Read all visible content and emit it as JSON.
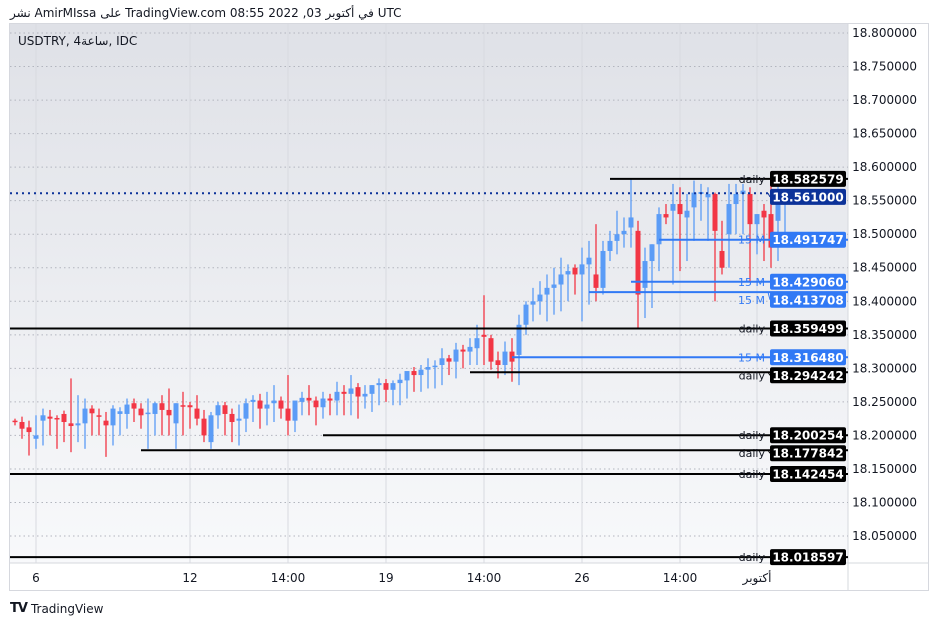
{
  "header": {
    "text": "نشر AmirMIssa على TradingView.com 08:55 2022 ,03 في أكتوبر UTC"
  },
  "symbol_label": "USDTRY, 4ساعة, IDC",
  "footer": {
    "brand": "TradingView"
  },
  "colors": {
    "up": "#5b9cf6",
    "down": "#f23645",
    "current": "#0c3299",
    "blue_level": "#3179f5",
    "black_level": "#000000"
  },
  "chart_data": {
    "type": "candlestick",
    "ylim": [
      18.0,
      18.8
    ],
    "y_ticks": [
      "18.800000",
      "18.750000",
      "18.700000",
      "18.650000",
      "18.600000",
      "18.550000",
      "18.500000",
      "18.450000",
      "18.400000",
      "18.350000",
      "18.300000",
      "18.250000",
      "18.200000",
      "18.150000",
      "18.100000",
      "18.050000"
    ],
    "x_ticks": [
      {
        "label": "6",
        "candle": 3
      },
      {
        "label": "12",
        "candle": 25
      },
      {
        "label": "14:00",
        "candle": 39
      },
      {
        "label": "19",
        "candle": 53
      },
      {
        "label": "14:00",
        "candle": 67
      },
      {
        "label": "26",
        "candle": 81
      },
      {
        "label": "14:00",
        "candle": 95
      },
      {
        "label": "أكتوبر",
        "candle": 106
      }
    ],
    "grid": true,
    "current_price": {
      "value": 18.561,
      "label": "18.561000"
    },
    "levels": [
      {
        "value": 18.582579,
        "label": "18.582579",
        "tag": "daily",
        "color": "black",
        "from_candle": 85
      },
      {
        "value": 18.491747,
        "label": "18.491747",
        "tag": "15 M",
        "color": "blue",
        "from_candle": 92
      },
      {
        "value": 18.42906,
        "label": "18.429060",
        "tag": "15 M",
        "color": "blue",
        "from_candle": 88
      },
      {
        "value": 18.413708,
        "label": "18.413708",
        "tag": "15 M",
        "color": "blue",
        "from_candle": 82
      },
      {
        "value": 18.359499,
        "label": "18.359499",
        "tag": "daily",
        "color": "black",
        "from_candle": 0
      },
      {
        "value": 18.31648,
        "label": "18.316480",
        "tag": "15 M",
        "color": "blue",
        "from_candle": 71
      },
      {
        "value": 18.294242,
        "label": "18.294242",
        "tag": "daily",
        "color": "black",
        "from_candle": 65
      },
      {
        "value": 18.200254,
        "label": "18.200254",
        "tag": "daily",
        "color": "black",
        "from_candle": 44
      },
      {
        "value": 18.177842,
        "label": "18.177842",
        "tag": "daily",
        "color": "black",
        "from_candle": 18
      },
      {
        "value": 18.142454,
        "label": "18.142454",
        "tag": "daily",
        "color": "black",
        "from_candle": 0
      },
      {
        "value": 18.018597,
        "label": "18.018597",
        "tag": "daily",
        "color": "black",
        "from_candle": 0
      }
    ],
    "ohlc": [
      [
        18.222,
        18.225,
        18.215,
        18.22
      ],
      [
        18.22,
        18.228,
        18.195,
        18.21
      ],
      [
        18.212,
        18.222,
        18.17,
        18.205
      ],
      [
        18.195,
        18.23,
        18.18,
        18.2
      ],
      [
        18.222,
        18.24,
        18.185,
        18.23
      ],
      [
        18.228,
        18.238,
        18.2,
        18.225
      ],
      [
        18.226,
        18.23,
        18.18,
        18.224
      ],
      [
        18.232,
        18.237,
        18.19,
        18.22
      ],
      [
        18.218,
        18.285,
        18.175,
        18.214
      ],
      [
        18.215,
        18.26,
        18.19,
        18.218
      ],
      [
        18.218,
        18.255,
        18.18,
        18.24
      ],
      [
        18.24,
        18.245,
        18.2,
        18.233
      ],
      [
        18.23,
        18.24,
        18.2,
        18.228
      ],
      [
        18.222,
        18.235,
        18.168,
        18.215
      ],
      [
        18.215,
        18.245,
        18.185,
        18.24
      ],
      [
        18.232,
        18.242,
        18.2,
        18.236
      ],
      [
        18.232,
        18.255,
        18.21,
        18.246
      ],
      [
        18.248,
        18.255,
        18.22,
        18.24
      ],
      [
        18.24,
        18.248,
        18.21,
        18.23
      ],
      [
        18.232,
        18.255,
        18.18,
        18.234
      ],
      [
        18.232,
        18.25,
        18.2,
        18.248
      ],
      [
        18.248,
        18.26,
        18.2,
        18.238
      ],
      [
        18.238,
        18.27,
        18.2,
        18.23
      ],
      [
        18.218,
        18.248,
        18.18,
        18.248
      ],
      [
        18.245,
        18.265,
        18.2,
        18.244
      ],
      [
        18.245,
        18.25,
        18.21,
        18.242
      ],
      [
        18.24,
        18.26,
        18.215,
        18.225
      ],
      [
        18.225,
        18.238,
        18.19,
        18.2
      ],
      [
        18.19,
        18.235,
        18.18,
        18.23
      ],
      [
        18.23,
        18.25,
        18.21,
        18.245
      ],
      [
        18.245,
        18.25,
        18.2,
        18.232
      ],
      [
        18.232,
        18.24,
        18.19,
        18.22
      ],
      [
        18.222,
        18.246,
        18.185,
        18.225
      ],
      [
        18.225,
        18.255,
        18.205,
        18.248
      ],
      [
        18.25,
        18.26,
        18.22,
        18.253
      ],
      [
        18.252,
        18.262,
        18.21,
        18.24
      ],
      [
        18.24,
        18.265,
        18.215,
        18.246
      ],
      [
        18.248,
        18.275,
        18.22,
        18.252
      ],
      [
        18.252,
        18.258,
        18.225,
        18.24
      ],
      [
        18.24,
        18.29,
        18.2,
        18.222
      ],
      [
        18.222,
        18.25,
        18.205,
        18.252
      ],
      [
        18.25,
        18.265,
        18.23,
        18.256
      ],
      [
        18.256,
        18.275,
        18.23,
        18.252
      ],
      [
        18.252,
        18.258,
        18.215,
        18.242
      ],
      [
        18.242,
        18.265,
        18.225,
        18.255
      ],
      [
        18.255,
        18.262,
        18.23,
        18.252
      ],
      [
        18.252,
        18.28,
        18.23,
        18.265
      ],
      [
        18.265,
        18.275,
        18.23,
        18.262
      ],
      [
        18.262,
        18.29,
        18.23,
        18.27
      ],
      [
        18.272,
        18.278,
        18.225,
        18.258
      ],
      [
        18.258,
        18.275,
        18.24,
        18.262
      ],
      [
        18.262,
        18.275,
        18.235,
        18.275
      ],
      [
        18.275,
        18.285,
        18.245,
        18.278
      ],
      [
        18.278,
        18.284,
        18.25,
        18.268
      ],
      [
        18.268,
        18.282,
        18.245,
        18.278
      ],
      [
        18.278,
        18.292,
        18.245,
        18.283
      ],
      [
        18.282,
        18.295,
        18.255,
        18.296
      ],
      [
        18.296,
        18.302,
        18.265,
        18.29
      ],
      [
        18.29,
        18.305,
        18.265,
        18.298
      ],
      [
        18.298,
        18.315,
        18.27,
        18.302
      ],
      [
        18.302,
        18.312,
        18.27,
        18.304
      ],
      [
        18.305,
        18.33,
        18.275,
        18.315
      ],
      [
        18.315,
        18.32,
        18.29,
        18.31
      ],
      [
        18.31,
        18.338,
        18.285,
        18.328
      ],
      [
        18.328,
        18.335,
        18.3,
        18.325
      ],
      [
        18.325,
        18.345,
        18.305,
        18.332
      ],
      [
        18.33,
        18.365,
        18.305,
        18.345
      ],
      [
        18.35,
        18.409,
        18.305,
        18.347
      ],
      [
        18.345,
        18.35,
        18.298,
        18.31
      ],
      [
        18.312,
        18.325,
        18.285,
        18.305
      ],
      [
        18.305,
        18.34,
        18.29,
        18.325
      ],
      [
        18.325,
        18.345,
        18.28,
        18.31
      ],
      [
        18.32,
        18.38,
        18.275,
        18.365
      ],
      [
        18.365,
        18.4,
        18.35,
        18.395
      ],
      [
        18.395,
        18.42,
        18.37,
        18.4
      ],
      [
        18.4,
        18.43,
        18.38,
        18.41
      ],
      [
        18.41,
        18.44,
        18.37,
        18.42
      ],
      [
        18.42,
        18.45,
        18.38,
        18.425
      ],
      [
        18.425,
        18.465,
        18.385,
        18.44
      ],
      [
        18.44,
        18.455,
        18.4,
        18.445
      ],
      [
        18.45,
        18.455,
        18.41,
        18.44
      ],
      [
        18.44,
        18.48,
        18.37,
        18.455
      ],
      [
        18.455,
        18.49,
        18.395,
        18.465
      ],
      [
        18.44,
        18.515,
        18.4,
        18.42
      ],
      [
        18.42,
        18.49,
        18.41,
        18.475
      ],
      [
        18.475,
        18.505,
        18.46,
        18.49
      ],
      [
        18.49,
        18.535,
        18.47,
        18.5
      ],
      [
        18.5,
        18.525,
        18.48,
        18.505
      ],
      [
        18.51,
        18.582,
        18.48,
        18.525
      ],
      [
        18.505,
        18.52,
        18.36,
        18.41
      ],
      [
        18.42,
        18.48,
        18.375,
        18.46
      ],
      [
        18.46,
        18.485,
        18.39,
        18.485
      ],
      [
        18.485,
        18.54,
        18.445,
        18.53
      ],
      [
        18.53,
        18.545,
        18.515,
        18.525
      ],
      [
        18.535,
        18.575,
        18.425,
        18.545
      ],
      [
        18.545,
        18.57,
        18.445,
        18.53
      ],
      [
        18.525,
        18.56,
        18.46,
        18.535
      ],
      [
        18.54,
        18.58,
        18.49,
        18.562
      ],
      [
        18.56,
        18.575,
        18.52,
        18.563
      ],
      [
        18.555,
        18.57,
        18.49,
        18.56
      ],
      [
        18.56,
        18.562,
        18.4,
        18.505
      ],
      [
        18.475,
        18.52,
        18.44,
        18.45
      ],
      [
        18.5,
        18.575,
        18.45,
        18.545
      ],
      [
        18.545,
        18.575,
        18.5,
        18.56
      ],
      [
        18.56,
        18.575,
        18.5,
        18.565
      ],
      [
        18.56,
        18.57,
        18.43,
        18.515
      ],
      [
        18.515,
        18.53,
        18.47,
        18.53
      ],
      [
        18.535,
        18.545,
        18.46,
        18.525
      ],
      [
        18.53,
        18.582,
        18.45,
        18.48
      ],
      [
        18.52,
        18.575,
        18.46,
        18.548
      ],
      [
        18.548,
        18.566,
        18.5,
        18.561
      ]
    ]
  }
}
